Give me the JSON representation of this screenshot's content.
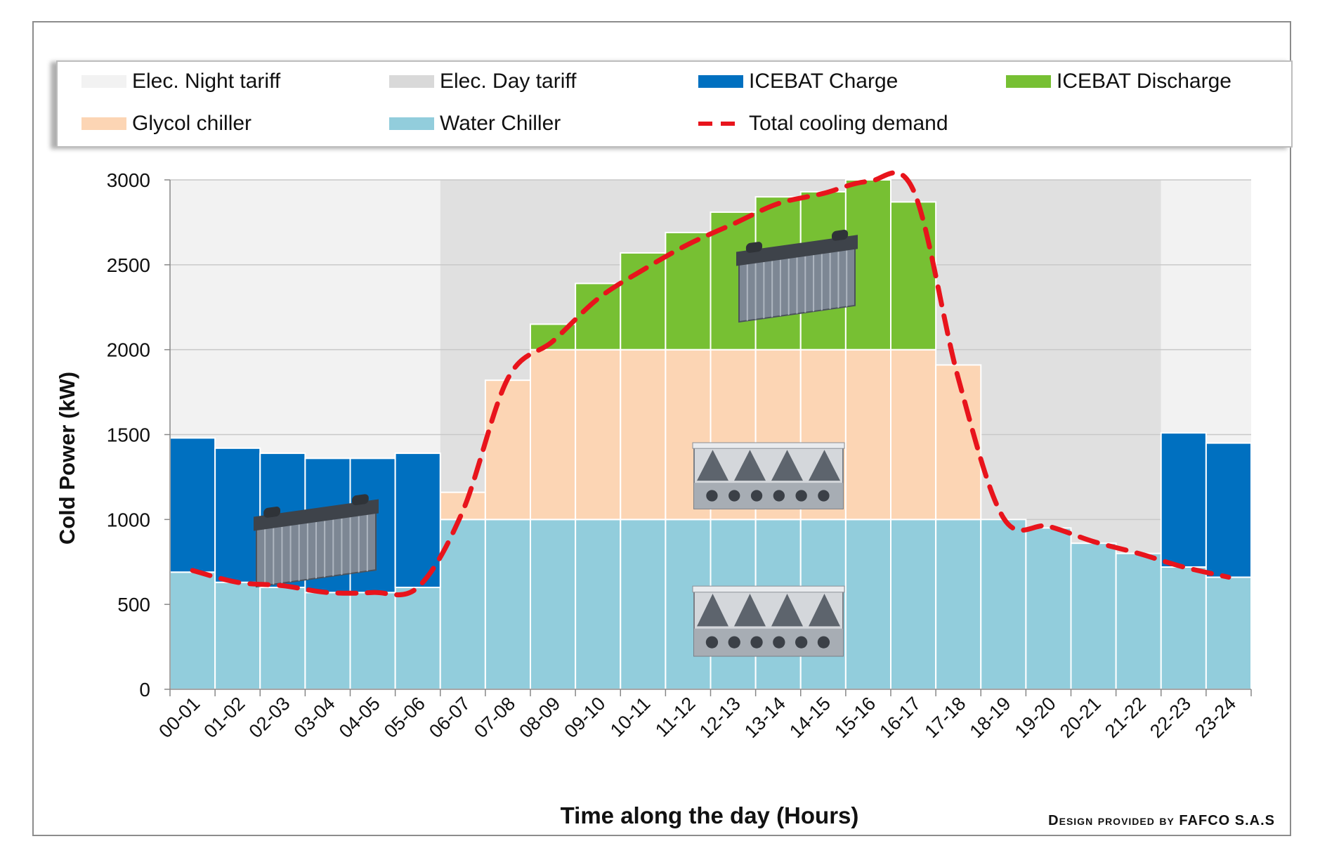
{
  "chart_data": {
    "type": "bar",
    "stacked": true,
    "title": "",
    "xlabel": "Time along the day (Hours)",
    "ylabel": "Cold Power (kW)",
    "ylim": [
      0,
      3000
    ],
    "yticks": [
      0,
      500,
      1000,
      1500,
      2000,
      2500,
      3000
    ],
    "grid": true,
    "legend_position": "top",
    "categories": [
      "00-01",
      "01-02",
      "02-03",
      "03-04",
      "04-05",
      "05-06",
      "06-07",
      "07-08",
      "08-09",
      "09-10",
      "10-11",
      "11-12",
      "12-13",
      "13-14",
      "14-15",
      "15-16",
      "16-17",
      "17-18",
      "18-19",
      "19-20",
      "20-21",
      "21-22",
      "22-23",
      "23-24"
    ],
    "tariff_bands": [
      {
        "name": "Elec. Night tariff",
        "from": "00-01",
        "to": "05-06",
        "color": "#f2f2f2"
      },
      {
        "name": "Elec. Day tariff",
        "from": "06-07",
        "to": "21-22",
        "color": "#e0e0e0"
      },
      {
        "name": "Elec. Night tariff",
        "from": "22-23",
        "to": "23-24",
        "color": "#f2f2f2"
      }
    ],
    "series": [
      {
        "name": "Water Chiller",
        "color": "#92cddc",
        "values": [
          690,
          630,
          600,
          570,
          570,
          600,
          1000,
          1000,
          1000,
          1000,
          1000,
          1000,
          1000,
          1000,
          1000,
          1000,
          1000,
          1000,
          1000,
          950,
          860,
          800,
          720,
          660
        ]
      },
      {
        "name": "Glycol chiller",
        "color": "#fcd5b4",
        "values": [
          0,
          0,
          0,
          0,
          0,
          0,
          160,
          820,
          1000,
          1000,
          1000,
          1000,
          1000,
          1000,
          1000,
          1000,
          1000,
          910,
          0,
          0,
          0,
          0,
          0,
          0
        ]
      },
      {
        "name": "ICEBAT Discharge",
        "color": "#77c033",
        "values": [
          0,
          0,
          0,
          0,
          0,
          0,
          0,
          0,
          150,
          390,
          570,
          690,
          810,
          900,
          930,
          1000,
          870,
          0,
          0,
          0,
          0,
          0,
          0,
          0
        ]
      },
      {
        "name": "ICEBAT Charge",
        "color": "#0070c0",
        "values": [
          790,
          790,
          790,
          790,
          790,
          790,
          0,
          0,
          0,
          0,
          0,
          0,
          0,
          0,
          0,
          0,
          0,
          0,
          0,
          0,
          0,
          0,
          790,
          790
        ]
      }
    ],
    "line_series": {
      "name": "Total cooling demand",
      "color": "#e8141c",
      "values": [
        700,
        630,
        610,
        570,
        570,
        600,
        1050,
        1830,
        2050,
        2300,
        2470,
        2620,
        2740,
        2860,
        2920,
        2990,
        2940,
        1830,
        1010,
        960,
        870,
        800,
        720,
        660
      ]
    }
  },
  "legend": [
    {
      "label": "Elec. Night tariff",
      "color": "#f2f2f2",
      "kind": "box"
    },
    {
      "label": "Elec. Day tariff",
      "color": "#d9d9d9",
      "kind": "box"
    },
    {
      "label": "ICEBAT Charge",
      "color": "#0070c0",
      "kind": "box"
    },
    {
      "label": "ICEBAT Discharge",
      "color": "#77c033",
      "kind": "box"
    },
    {
      "label": "Glycol chiller",
      "color": "#fcd5b4",
      "kind": "box"
    },
    {
      "label": "Water Chiller",
      "color": "#92cddc",
      "kind": "box"
    },
    {
      "label": "Total cooling demand",
      "color": "#e8141c",
      "kind": "dash"
    }
  ],
  "credit": "Design provided by FAFCO S.A.S",
  "illustrations": [
    "ice-storage-tank-icon",
    "glycol-chiller-icon",
    "water-chiller-icon"
  ]
}
